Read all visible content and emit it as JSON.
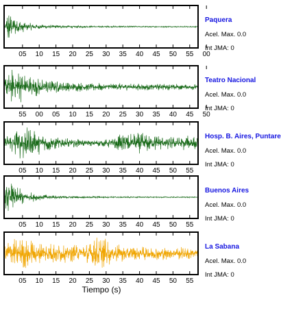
{
  "chart_data": {
    "type": "line",
    "xlabel": "Tiempo (s)",
    "panels": [
      {
        "station": "Paquera",
        "accel_text": "Acel. Max. 0.0",
        "intensity_text": "Int JMA: 0",
        "color": "#1a6b1a",
        "tick_labels": [
          "05",
          "10",
          "15",
          "20",
          "25",
          "30",
          "35",
          "40",
          "45",
          "50",
          "55",
          "00"
        ],
        "x": [
          0,
          1,
          2,
          3,
          5,
          8,
          12,
          20,
          30,
          45,
          57
        ],
        "y": [
          0.0,
          1.0,
          0.6,
          0.45,
          0.3,
          0.18,
          0.1,
          0.06,
          0.04,
          0.03,
          0.03
        ]
      },
      {
        "station": "Teatro Nacional",
        "accel_text": "Acel. Max. 0.0",
        "intensity_text": "Int JMA: 0",
        "color": "#1a6b1a",
        "tick_labels": [
          "55",
          "00",
          "05",
          "10",
          "15",
          "20",
          "25",
          "30",
          "35",
          "40",
          "45",
          "50"
        ],
        "x": [
          0,
          2,
          4,
          6,
          8,
          10,
          15,
          20,
          30,
          40,
          50,
          57
        ],
        "y": [
          0.7,
          0.95,
          0.85,
          0.7,
          0.55,
          0.45,
          0.32,
          0.25,
          0.2,
          0.18,
          0.16,
          0.15
        ]
      },
      {
        "station": "Hosp. B. Aires, Puntare",
        "accel_text": "Acel. Max. 0.0",
        "intensity_text": "Int JMA: 0",
        "color": "#1a6b1a",
        "tick_labels": [
          "05",
          "10",
          "15",
          "20",
          "25",
          "30",
          "35",
          "40",
          "45",
          "50",
          "55"
        ],
        "x": [
          0,
          2,
          4,
          6,
          8,
          12,
          16,
          20,
          25,
          30,
          33,
          36,
          40,
          44,
          48,
          52,
          55,
          57
        ],
        "y": [
          0.3,
          0.6,
          0.8,
          1.0,
          0.7,
          0.5,
          0.35,
          0.25,
          0.15,
          0.18,
          0.4,
          0.5,
          0.55,
          0.45,
          0.35,
          0.3,
          0.45,
          0.3
        ]
      },
      {
        "station": "Buenos Aires",
        "accel_text": "Acel. Max. 0.0",
        "intensity_text": "Int JMA: 0",
        "color": "#1a6b1a",
        "tick_labels": [
          "05",
          "10",
          "15",
          "20",
          "25",
          "30",
          "35",
          "40",
          "45",
          "50",
          "55"
        ],
        "x": [
          0,
          1,
          2,
          3,
          5,
          7,
          10,
          15,
          20,
          30,
          45,
          57
        ],
        "y": [
          0.5,
          1.0,
          0.85,
          0.6,
          0.4,
          0.28,
          0.18,
          0.1,
          0.06,
          0.04,
          0.03,
          0.03
        ]
      },
      {
        "station": "La Sabana",
        "accel_text": "Acel. Max. 0.0",
        "intensity_text": "Int JMA: 0",
        "color": "#f0a500",
        "tick_labels": [
          "05",
          "10",
          "15",
          "20",
          "25",
          "30",
          "35",
          "40",
          "45",
          "50",
          "55"
        ],
        "x": [
          0,
          2,
          4,
          6,
          10,
          15,
          20,
          24,
          26,
          28,
          30,
          32,
          36,
          40,
          45,
          50,
          55,
          57
        ],
        "y": [
          0.6,
          0.85,
          0.7,
          0.8,
          0.6,
          0.55,
          0.45,
          0.5,
          0.75,
          1.0,
          0.8,
          0.5,
          0.4,
          0.35,
          0.4,
          0.3,
          0.35,
          0.3
        ]
      }
    ]
  }
}
